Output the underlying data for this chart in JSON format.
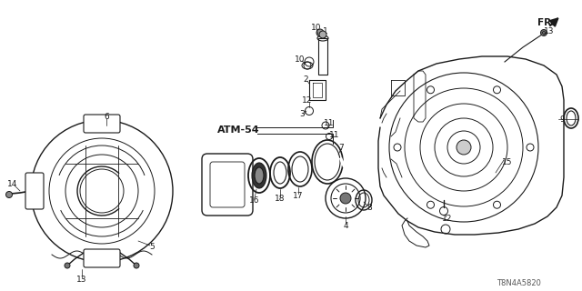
{
  "background_color": "#ffffff",
  "line_color": "#1a1a1a",
  "diagram_code": "T8N4A5820",
  "fr_label": "FR.",
  "atm_label": "ATM-54"
}
